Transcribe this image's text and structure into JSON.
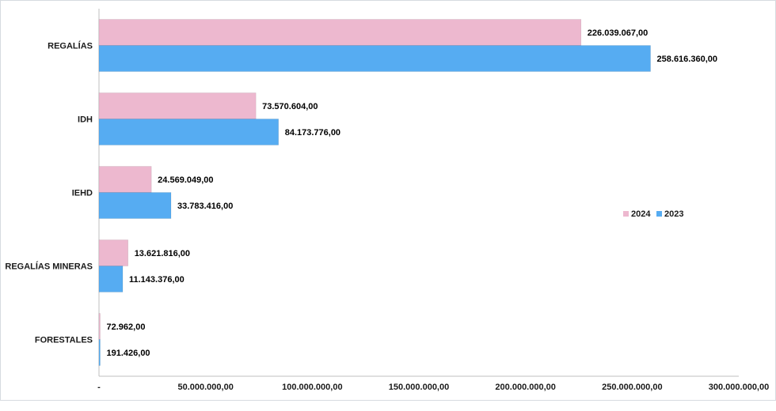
{
  "chart_data": {
    "type": "bar",
    "orientation": "horizontal",
    "categories": [
      "REGALÍAS",
      "IDH",
      "IEHD",
      "REGALÍAS MINERAS",
      "FORESTALES"
    ],
    "series": [
      {
        "name": "2024",
        "color": "#edb8cf",
        "values": [
          226039067,
          73570604,
          24569049,
          13621816,
          72962
        ],
        "labels": [
          "226.039.067,00",
          "73.570.604,00",
          "24.569.049,00",
          "13.621.816,00",
          "72.962,00"
        ]
      },
      {
        "name": "2023",
        "color": "#56acf2",
        "values": [
          258616360,
          84173776,
          33783416,
          11143376,
          191426
        ],
        "labels": [
          "258.616.360,00",
          "84.173.776,00",
          "33.783.416,00",
          "11.143.376,00",
          "191.426,00"
        ]
      }
    ],
    "xlim": [
      0,
      300000000
    ],
    "xticks": [
      0,
      50000000,
      100000000,
      150000000,
      200000000,
      250000000,
      300000000
    ],
    "xtick_labels": [
      "-",
      "50.000.000,00",
      "100.000.000,00",
      "150.000.000,00",
      "200.000.000,00",
      "250.000.000,00",
      "300.000.000,00"
    ],
    "legend_position": "right",
    "grid": false
  }
}
